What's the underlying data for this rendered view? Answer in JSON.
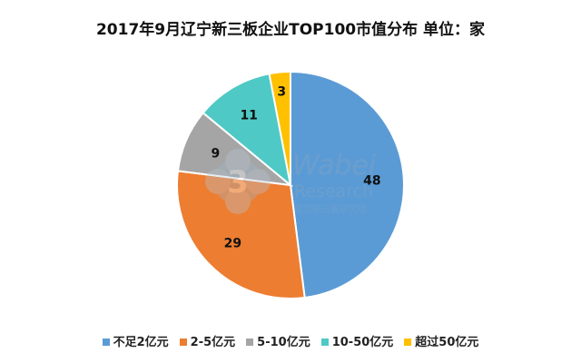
{
  "chart_data": {
    "type": "pie",
    "title": "2017年9月辽宁新三板企业TOP100市值分布  单位：家",
    "categories": [
      "不足2亿元",
      "2-5亿元",
      "5-10亿元",
      "10-50亿元",
      "超过50亿元"
    ],
    "values": [
      48,
      29,
      9,
      11,
      3
    ],
    "colors": [
      "#5b9bd5",
      "#ed7d31",
      "#a5a5a5",
      "#4fc9c5",
      "#ffc000"
    ],
    "legend_position": "bottom",
    "start": "top",
    "direction": "clockwise"
  },
  "watermark": {
    "brand": "Wabei",
    "brand2": "Research",
    "subtitle": "挖贝新三板研究院"
  }
}
